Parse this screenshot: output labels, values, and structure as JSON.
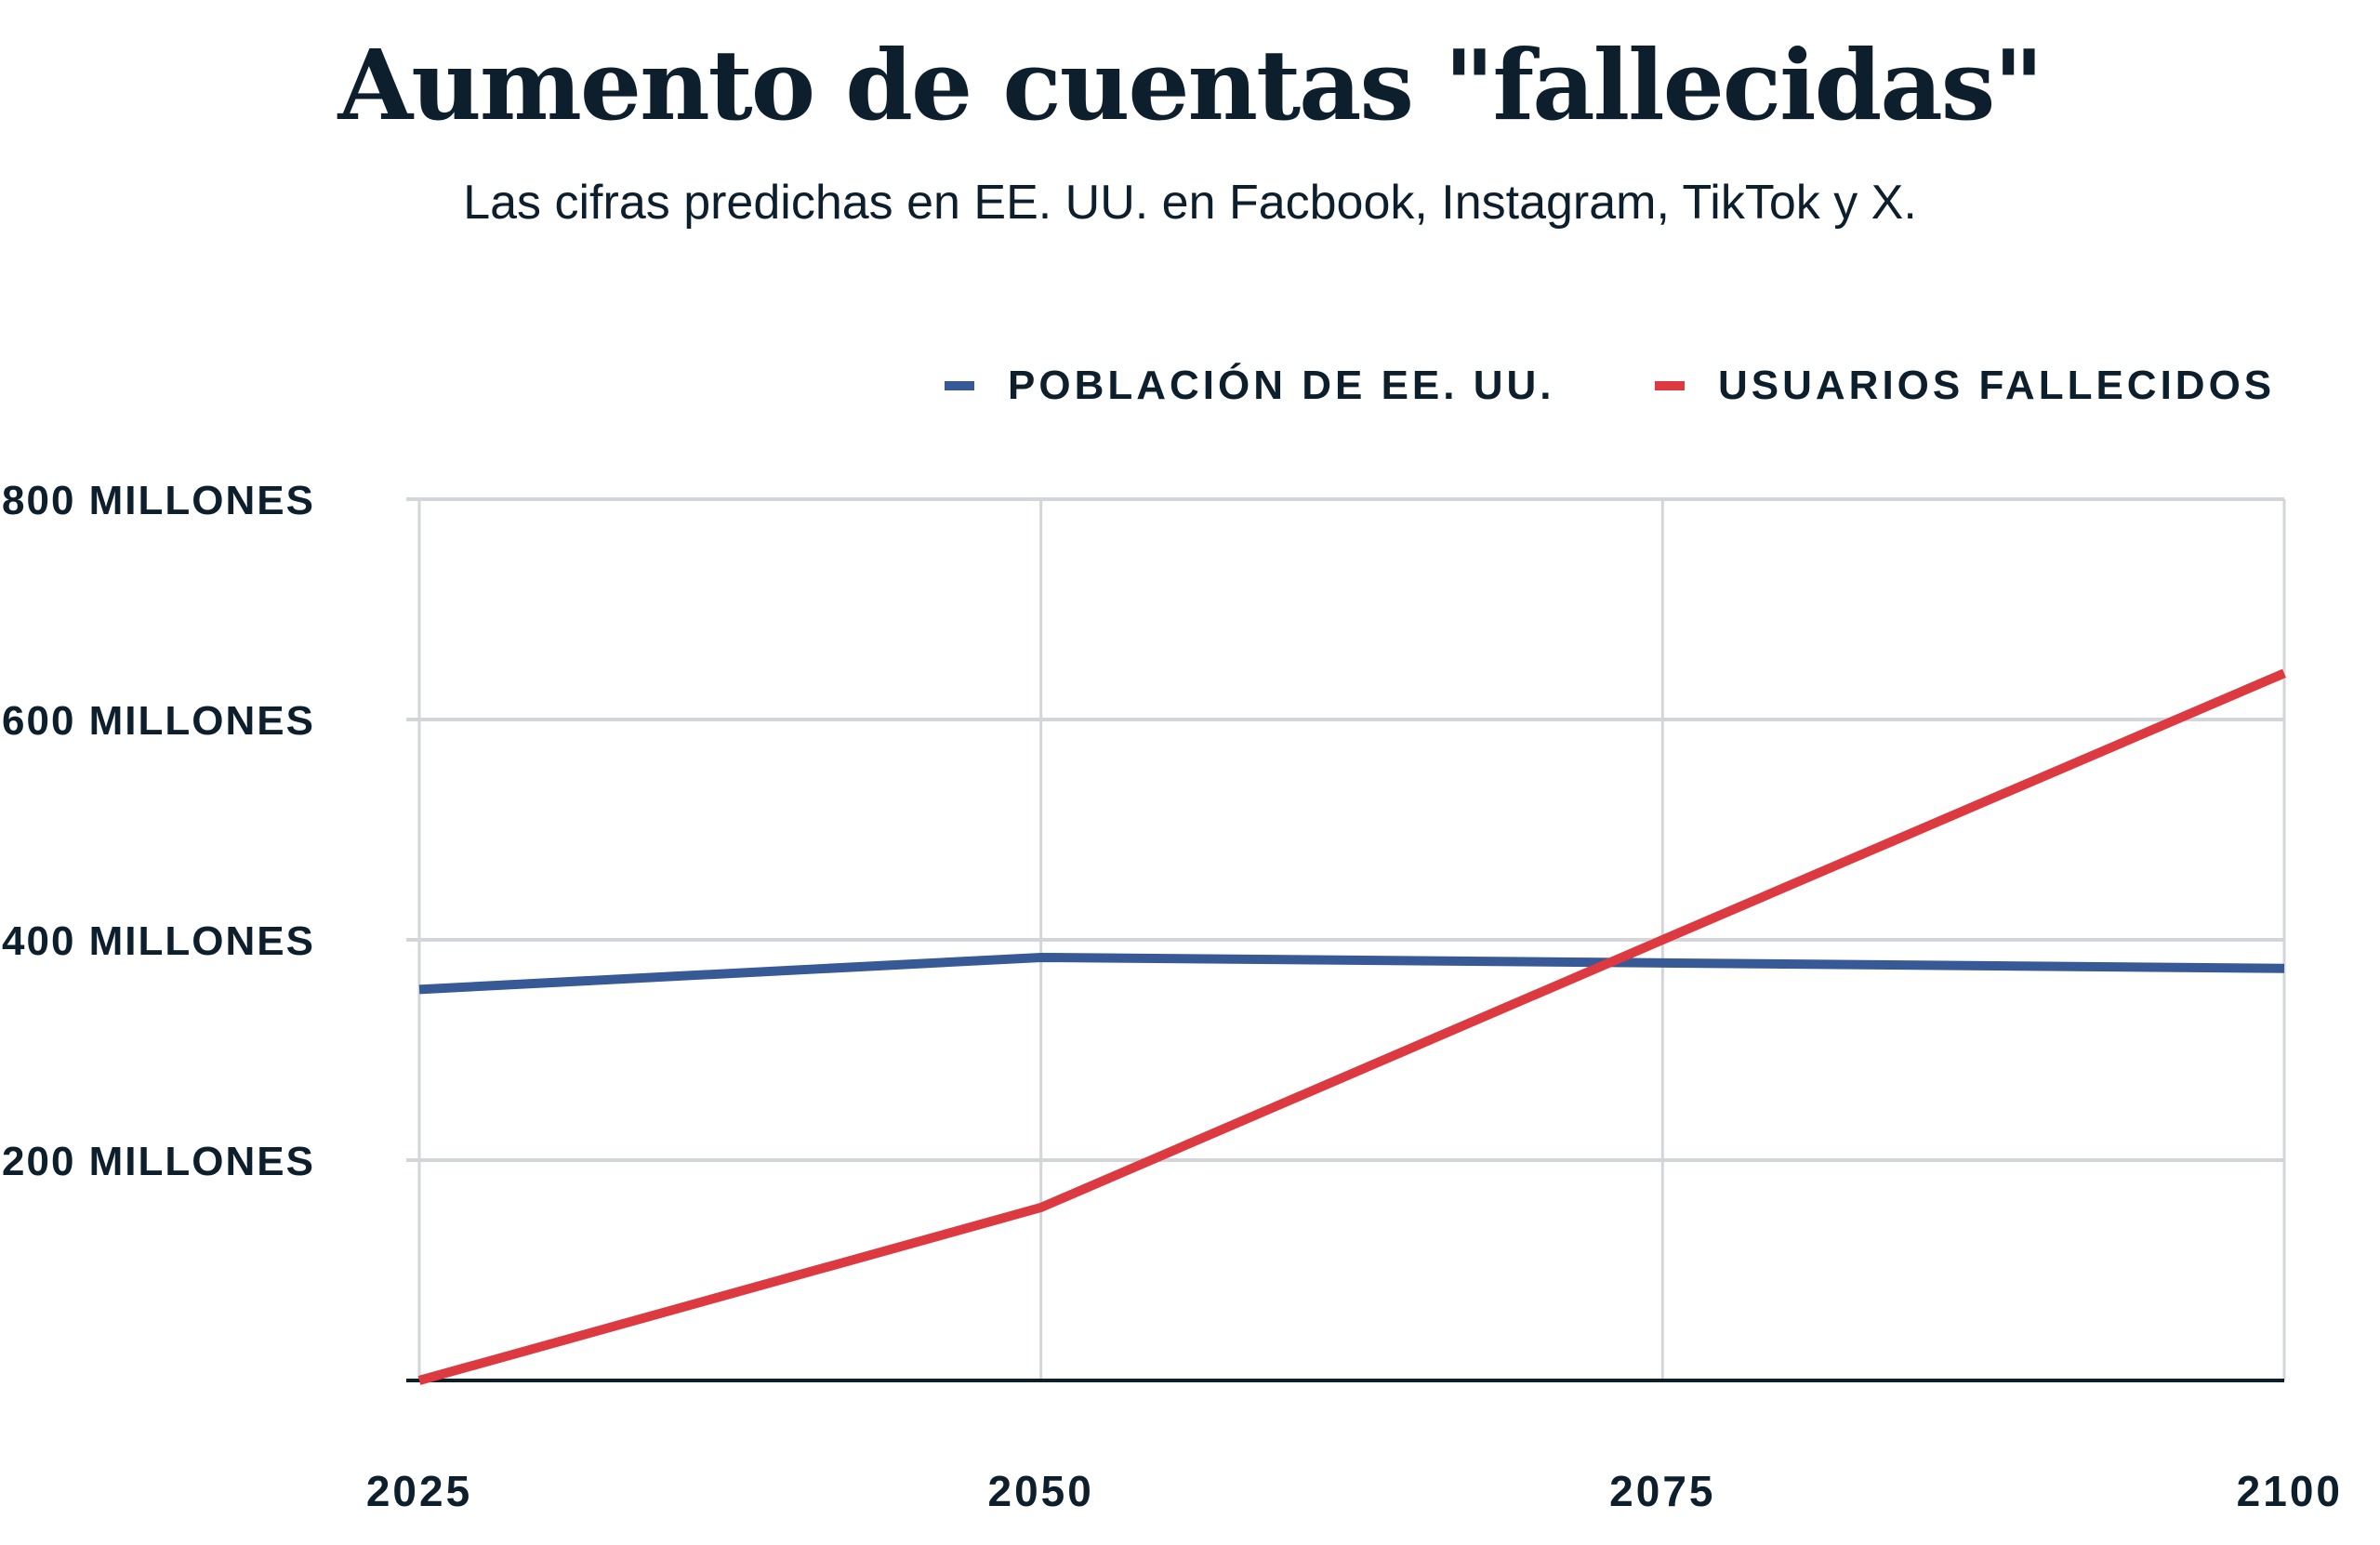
{
  "chart_data": {
    "type": "line",
    "title": "Aumento de cuentas \"fallecidas\"",
    "subtitle": "Las cifras predichas en EE. UU. en Facbook, Instagram, TikTok y X.",
    "x": [
      2025,
      2050,
      2075,
      2100
    ],
    "x_tick_labels": [
      "2025",
      "2050",
      "2075",
      "2100"
    ],
    "y_ticks": [
      200,
      400,
      600,
      800
    ],
    "y_tick_labels": [
      "200 MILLONES",
      "400 MILLONES",
      "600 MILLONES",
      "800 MILLONES"
    ],
    "ylim": [
      0,
      800
    ],
    "xlim": [
      2025,
      2100
    ],
    "grid": true,
    "legend_position": "top-right",
    "series": [
      {
        "name": "POBLACIÓN DE EE. UU.",
        "color": "#375a96",
        "values": [
          355,
          384,
          379,
          374
        ]
      },
      {
        "name": "USUARIOS FALLECIDOS",
        "color": "#dc3a40",
        "values": [
          0,
          157,
          400,
          642
        ]
      }
    ]
  }
}
